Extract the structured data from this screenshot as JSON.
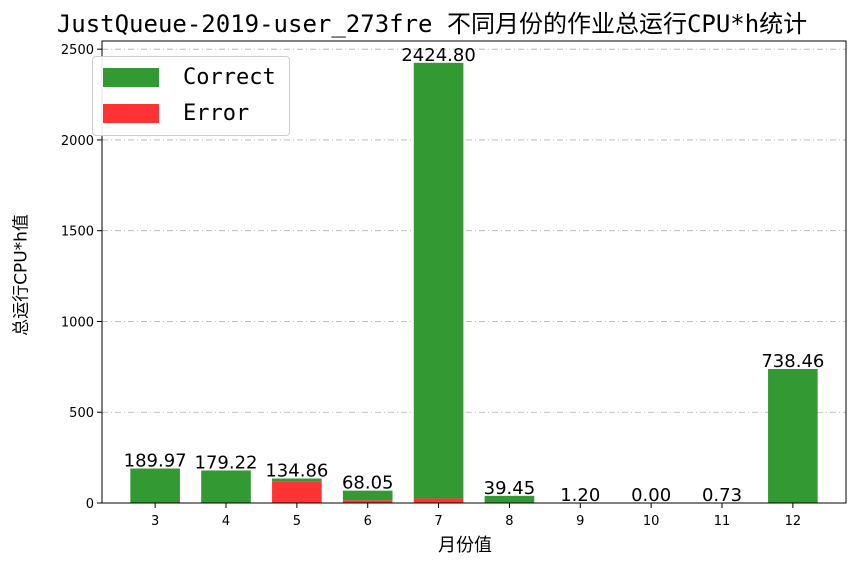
{
  "chart_data": {
    "type": "bar",
    "stacked": true,
    "title": "JustQueue-2019-user_273fre 不同月份的作业总运行CPU*h统计",
    "xlabel": "月份值",
    "ylabel": "总运行CPU*h值",
    "categories": [
      "3",
      "4",
      "5",
      "6",
      "7",
      "8",
      "9",
      "10",
      "11",
      "12"
    ],
    "series": [
      {
        "name": "Error",
        "color": "#ff3333",
        "values": [
          0,
          0,
          120,
          15,
          25,
          0,
          0,
          0,
          0,
          0
        ]
      },
      {
        "name": "Correct",
        "color": "#339933",
        "values": [
          189.97,
          179.22,
          14.86,
          53.05,
          2399.8,
          39.45,
          1.2,
          0,
          0.73,
          738.46
        ]
      }
    ],
    "totals": [
      189.97,
      179.22,
      134.86,
      68.05,
      2424.8,
      39.45,
      1.2,
      0.0,
      0.73,
      738.46
    ],
    "total_labels": [
      "189.97",
      "179.22",
      "134.86",
      "68.05",
      "2424.80",
      "39.45",
      "1.20",
      "0.00",
      "0.73",
      "738.46"
    ],
    "yticks": [
      "0",
      "500",
      "1000",
      "1500",
      "2000",
      "2500"
    ],
    "ylim": [
      0,
      2545
    ],
    "grid": true,
    "legend_position": "upper-left",
    "legend": [
      {
        "label": "Correct",
        "color": "#339933"
      },
      {
        "label": "Error",
        "color": "#ff3333"
      }
    ]
  }
}
